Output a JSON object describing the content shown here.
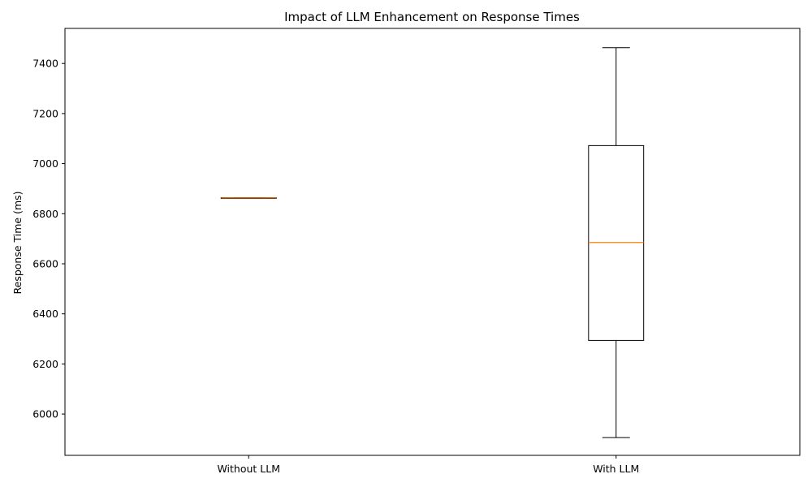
{
  "chart_data": {
    "type": "boxplot",
    "title": "Impact of LLM Enhancement on Response Times",
    "xlabel": "",
    "ylabel": "Response Time (ms)",
    "ylim": [
      5835,
      7540
    ],
    "yticks": [
      6000,
      6200,
      6400,
      6600,
      6800,
      7000,
      7200,
      7400
    ],
    "grid": false,
    "categories": [
      "Without LLM",
      "With LLM"
    ],
    "boxes": [
      {
        "category": "Without LLM",
        "whisker_low": 6863,
        "q1": 6863,
        "median": 6863,
        "q3": 6864,
        "whisker_high": 6864
      },
      {
        "category": "With LLM",
        "whisker_low": 5906,
        "q1": 6294,
        "median": 6685,
        "q3": 7072,
        "whisker_high": 7463
      }
    ],
    "colors": {
      "box": "#000000",
      "median": "#ff7f0e",
      "axis": "#000000"
    }
  }
}
